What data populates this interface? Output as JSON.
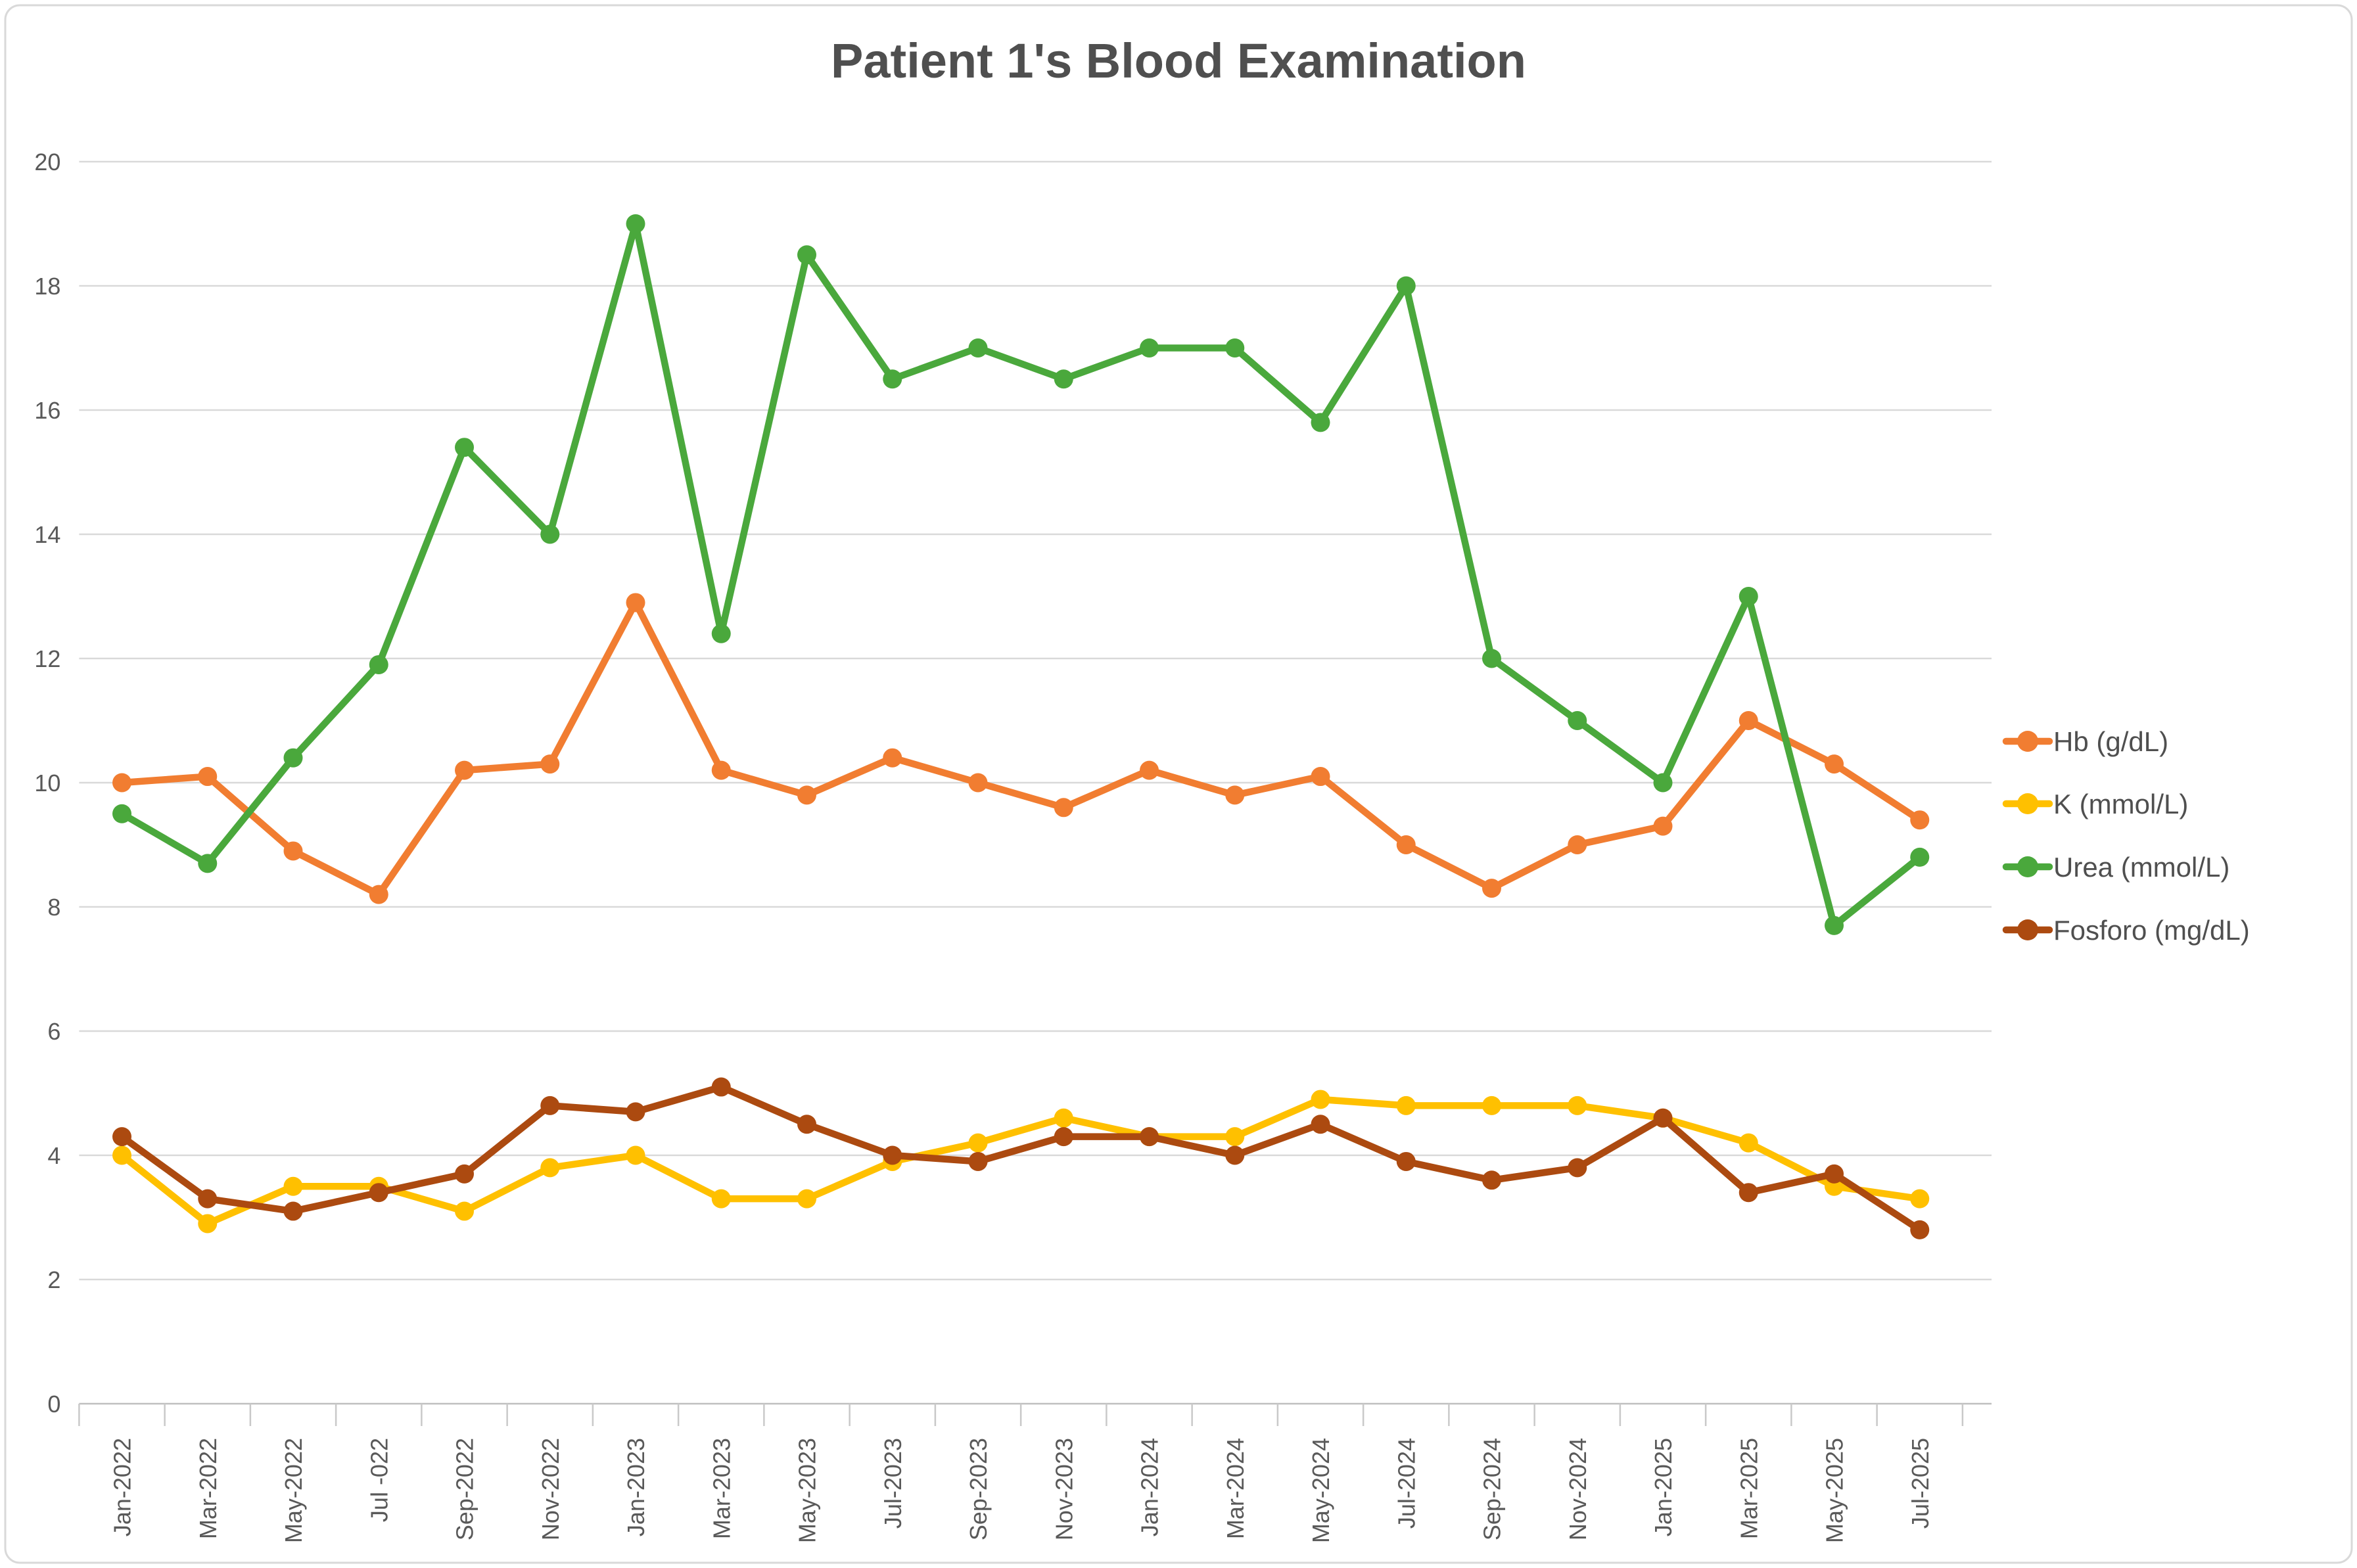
{
  "chart_data": {
    "type": "line",
    "title": "Patient 1's Blood Examination",
    "xlabel": "",
    "ylabel": "",
    "ylim": [
      0,
      20
    ],
    "ytick_step": 2,
    "grid": "on",
    "legend_position": "right",
    "categories": [
      "Jan-2022",
      "Mar-2022",
      "May-2022",
      "Jul -022",
      "Sep-2022",
      "Nov-2022",
      "Jan-2023",
      "Mar-2023",
      "May-2023",
      "Jul-2023",
      "Sep-2023",
      "Nov-2023",
      "Jan-2024",
      "Mar-2024",
      "May-2024",
      "Jul-2024",
      "Sep-2024",
      "Nov-2024",
      "Jan-2025",
      "Mar-2025",
      "May-2025",
      "Jul-2025"
    ],
    "series": [
      {
        "name": "Hb (g/dL)",
        "color": "#F17D31",
        "values": [
          10.0,
          10.1,
          8.9,
          8.2,
          10.2,
          10.3,
          12.9,
          10.2,
          9.8,
          10.4,
          10.0,
          9.6,
          10.2,
          9.8,
          10.1,
          9.0,
          8.3,
          9.0,
          9.3,
          11.0,
          10.3,
          9.4
        ]
      },
      {
        "name": "K (mmol/L)",
        "color": "#FFC000",
        "values": [
          4.0,
          2.9,
          3.5,
          3.5,
          3.1,
          3.8,
          4.0,
          3.3,
          3.3,
          3.9,
          4.2,
          4.6,
          4.3,
          4.3,
          4.9,
          4.8,
          4.8,
          4.8,
          4.6,
          4.2,
          3.5,
          3.3
        ]
      },
      {
        "name": "Urea (mmol/L)",
        "color": "#4AA83C",
        "values": [
          9.5,
          8.7,
          10.4,
          11.9,
          15.4,
          14.0,
          19.0,
          12.4,
          18.5,
          16.5,
          17.0,
          16.5,
          17.0,
          17.0,
          15.8,
          18.0,
          12.0,
          11.0,
          10.0,
          13.0,
          7.7,
          8.8
        ]
      },
      {
        "name": "Fosforo (mg/dL)",
        "color": "#AC4A10",
        "values": [
          4.3,
          3.3,
          3.1,
          3.4,
          3.7,
          4.8,
          4.7,
          5.1,
          4.5,
          4.0,
          3.9,
          4.3,
          4.3,
          4.0,
          4.5,
          3.9,
          3.6,
          3.8,
          4.6,
          3.4,
          3.7,
          2.8
        ]
      }
    ],
    "y_tick_labels": [
      "0",
      "2",
      "4",
      "6",
      "8",
      "10",
      "12",
      "14",
      "16",
      "18",
      "20"
    ]
  },
  "style_colors": {
    "gridline": "#D9D9D9",
    "axis_line": "#BFBFBF",
    "tick": "#C9C9C9",
    "text": "#595959",
    "title_text": "#4F4F4F",
    "frame_border": "#D9D9D9",
    "background": "#FFFFFF"
  }
}
